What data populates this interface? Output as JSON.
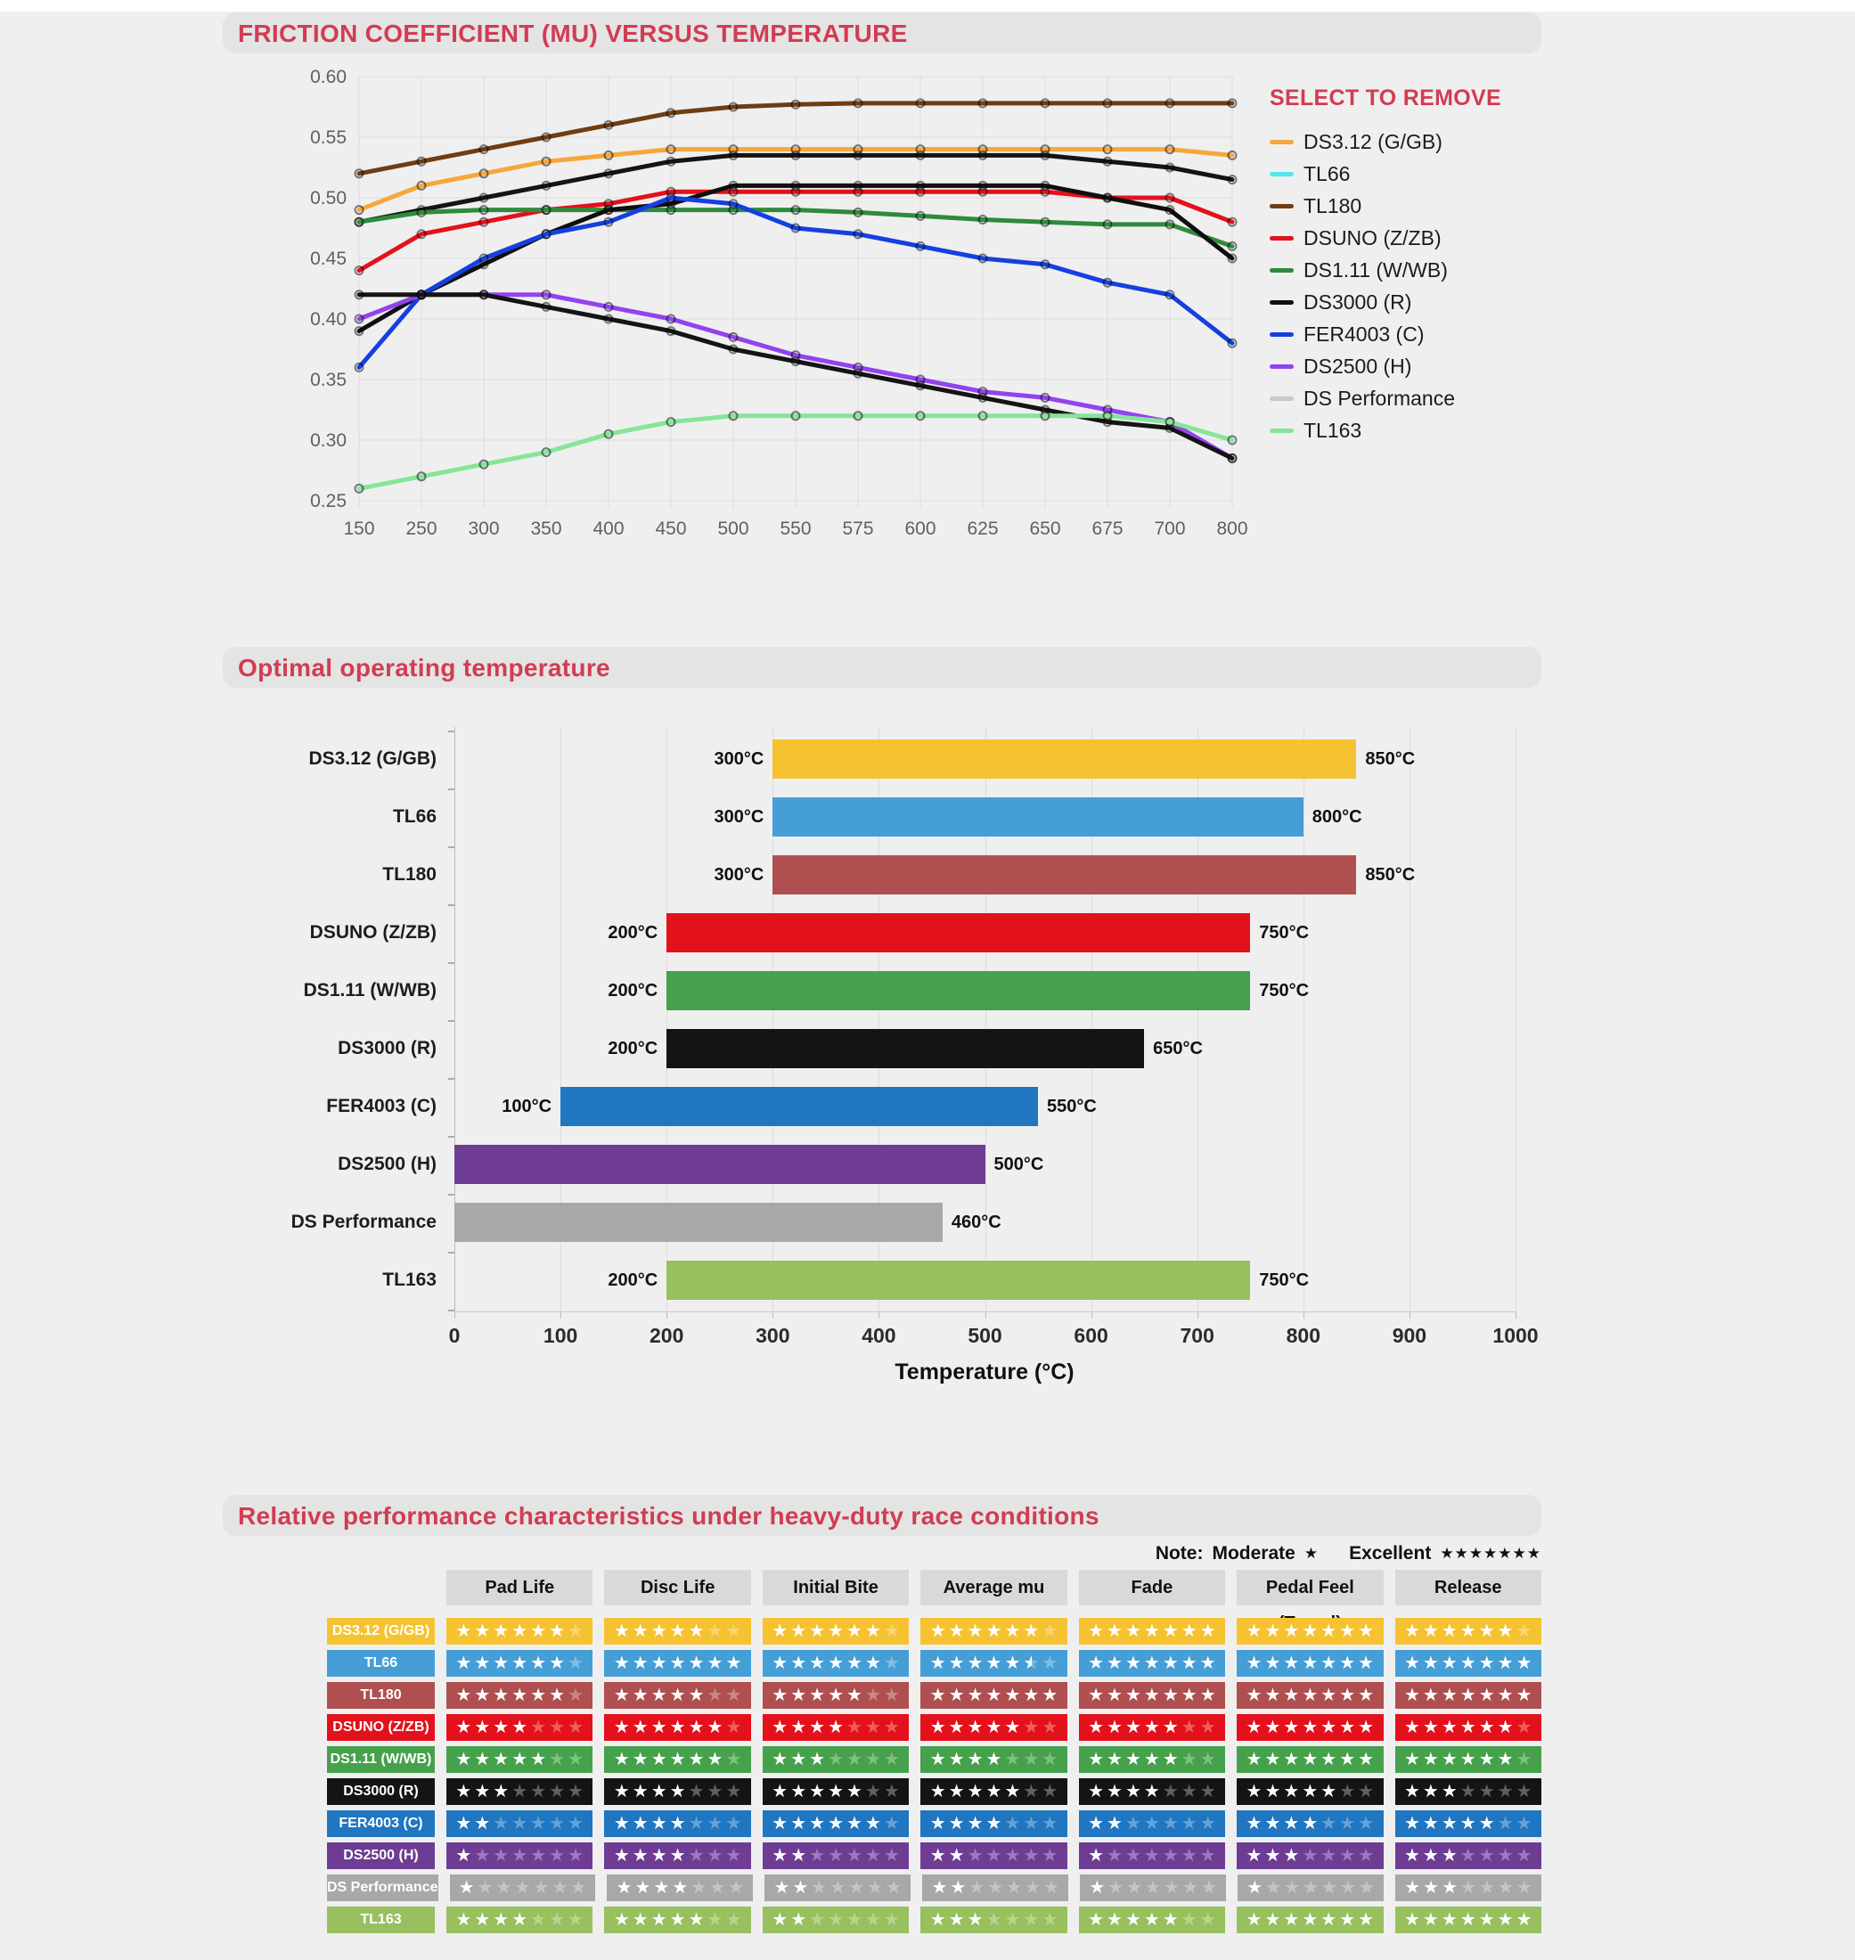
{
  "page": {
    "background": "#EFEFF0",
    "accent_red": "#D23C52"
  },
  "line_section": {
    "title": "FRICTION COEFFICIENT (MU) VERSUS TEMPERATURE",
    "legend_title": "SELECT TO REMOVE"
  },
  "bar_section": {
    "title": "Optimal operating temperature"
  },
  "table_section": {
    "title": "Relative performance characteristics under heavy-duty race conditions",
    "note_label": "Note:",
    "note_moderate_label": "Moderate",
    "note_moderate_stars": 1,
    "note_excellent_label": "Excellent",
    "note_excellent_stars": 7
  },
  "chart_data": [
    {
      "type": "line",
      "title": "FRICTION COEFFICIENT (MU) VERSUS TEMPERATURE",
      "x_categories": [
        150,
        250,
        300,
        350,
        400,
        450,
        500,
        550,
        575,
        600,
        625,
        650,
        675,
        700,
        800
      ],
      "ylim": [
        0.25,
        0.6
      ],
      "y_tick_step": 0.05,
      "grid": true,
      "legend_position": "right",
      "series": [
        {
          "name": "DS3.12 (G/GB)",
          "line_color": "#F5A73B",
          "legend_color": "#F5A73B",
          "values": [
            0.49,
            0.51,
            0.52,
            0.53,
            0.535,
            0.54,
            0.54,
            0.54,
            0.54,
            0.54,
            0.54,
            0.54,
            0.54,
            0.54,
            0.535
          ]
        },
        {
          "name": "TL66",
          "line_color": "#141414",
          "legend_color": "#53E8F0",
          "values": [
            0.48,
            0.49,
            0.5,
            0.51,
            0.52,
            0.53,
            0.535,
            0.535,
            0.535,
            0.535,
            0.535,
            0.535,
            0.53,
            0.525,
            0.515
          ]
        },
        {
          "name": "TL180",
          "line_color": "#6F3D13",
          "legend_color": "#6F3D13",
          "values": [
            0.52,
            0.53,
            0.54,
            0.55,
            0.56,
            0.57,
            0.575,
            0.577,
            0.578,
            0.578,
            0.578,
            0.578,
            0.578,
            0.578,
            0.578
          ]
        },
        {
          "name": "DSUNO (Z/ZB)",
          "line_color": "#E3111B",
          "legend_color": "#E3111B",
          "values": [
            0.44,
            0.47,
            0.48,
            0.49,
            0.495,
            0.505,
            0.505,
            0.505,
            0.505,
            0.505,
            0.505,
            0.505,
            0.5,
            0.5,
            0.48
          ]
        },
        {
          "name": "DS1.11 (W/WB)",
          "line_color": "#2F8B3B",
          "legend_color": "#2F8B3B",
          "values": [
            0.48,
            0.488,
            0.49,
            0.49,
            0.49,
            0.49,
            0.49,
            0.49,
            0.488,
            0.485,
            0.482,
            0.48,
            0.478,
            0.478,
            0.46
          ]
        },
        {
          "name": "DS3000 (R)",
          "line_color": "#0F0F0F",
          "legend_color": "#0F0F0F",
          "values": [
            0.39,
            0.42,
            0.445,
            0.47,
            0.49,
            0.495,
            0.51,
            0.51,
            0.51,
            0.51,
            0.51,
            0.51,
            0.5,
            0.49,
            0.45
          ]
        },
        {
          "name": "FER4003 (C)",
          "line_color": "#1440E0",
          "legend_color": "#1440E0",
          "values": [
            0.36,
            0.42,
            0.45,
            0.47,
            0.48,
            0.5,
            0.495,
            0.475,
            0.47,
            0.46,
            0.45,
            0.445,
            0.43,
            0.42,
            0.38
          ]
        },
        {
          "name": "DS2500 (H)",
          "line_color": "#9243EE",
          "legend_color": "#9243EE",
          "values": [
            0.4,
            0.42,
            0.42,
            0.42,
            0.41,
            0.4,
            0.385,
            0.37,
            0.36,
            0.35,
            0.34,
            0.335,
            0.325,
            0.315,
            0.285
          ]
        },
        {
          "name": "DS Performance",
          "line_color": "#141414",
          "legend_color": "#C9C9C9",
          "values": [
            0.42,
            0.42,
            0.42,
            0.41,
            0.4,
            0.39,
            0.375,
            0.365,
            0.355,
            0.345,
            0.335,
            0.325,
            0.315,
            0.31,
            0.285
          ]
        },
        {
          "name": "TL163",
          "line_color": "#86E598",
          "legend_color": "#86E598",
          "values": [
            0.26,
            0.27,
            0.28,
            0.29,
            0.305,
            0.315,
            0.32,
            0.32,
            0.32,
            0.32,
            0.32,
            0.32,
            0.32,
            0.315,
            0.3
          ]
        }
      ]
    },
    {
      "type": "bar",
      "title": "Optimal operating temperature",
      "orientation": "horizontal",
      "xlabel": "Temperature (°C)",
      "xlim": [
        0,
        1000
      ],
      "x_ticks": [
        0,
        100,
        200,
        300,
        400,
        500,
        600,
        700,
        800,
        900,
        1000
      ],
      "grid": true,
      "bars": [
        {
          "label": "DS3.12 (G/GB)",
          "start": 300,
          "end": 850,
          "start_label": "300°C",
          "end_label": "850°C",
          "color": "#F5C332"
        },
        {
          "label": "TL66",
          "start": 300,
          "end": 800,
          "start_label": "300°C",
          "end_label": "800°C",
          "color": "#459FD6"
        },
        {
          "label": "TL180",
          "start": 300,
          "end": 850,
          "start_label": "300°C",
          "end_label": "850°C",
          "color": "#B04F4F"
        },
        {
          "label": "DSUNO (Z/ZB)",
          "start": 200,
          "end": 750,
          "start_label": "200°C",
          "end_label": "750°C",
          "color": "#E3111B"
        },
        {
          "label": "DS1.11 (W/WB)",
          "start": 200,
          "end": 750,
          "start_label": "200°C",
          "end_label": "750°C",
          "color": "#46A14C"
        },
        {
          "label": "DS3000 (R)",
          "start": 200,
          "end": 650,
          "start_label": "200°C",
          "end_label": "650°C",
          "color": "#141414"
        },
        {
          "label": "FER4003 (C)",
          "start": 100,
          "end": 550,
          "start_label": "100°C",
          "end_label": "550°C",
          "color": "#2076C0"
        },
        {
          "label": "DS2500 (H)",
          "start": 0,
          "end": 500,
          "start_label": "",
          "end_label": "500°C",
          "color": "#6E3D93"
        },
        {
          "label": "DS Performance",
          "start": 0,
          "end": 460,
          "start_label": "",
          "end_label": "460°C",
          "color": "#A8A8A8"
        },
        {
          "label": "TL163",
          "start": 200,
          "end": 750,
          "start_label": "200°C",
          "end_label": "750°C",
          "color": "#98C05E"
        }
      ]
    },
    {
      "type": "table",
      "title": "Relative performance characteristics under heavy-duty race conditions",
      "max_stars": 7,
      "columns": [
        "Pad Life",
        "Disc Life",
        "Initial Bite",
        "Average mu",
        "Fade",
        "Pedal Feel (Travel)",
        "Release"
      ],
      "rows": [
        {
          "label": "DS3.12 (G/GB)",
          "color": "#F5C332",
          "ratings": [
            6,
            5,
            6,
            6,
            7,
            7,
            6
          ]
        },
        {
          "label": "TL66",
          "color": "#459FD6",
          "ratings": [
            6,
            7,
            6,
            5.5,
            7,
            7,
            7
          ]
        },
        {
          "label": "TL180",
          "color": "#B04F4F",
          "ratings": [
            6,
            5,
            5,
            7,
            7,
            7,
            7
          ]
        },
        {
          "label": "DSUNO (Z/ZB)",
          "color": "#E3111B",
          "ratings": [
            4,
            6,
            4,
            5,
            5,
            7,
            6
          ]
        },
        {
          "label": "DS1.11 (W/WB)",
          "color": "#46A14C",
          "ratings": [
            5,
            6,
            3,
            4,
            5,
            7,
            6
          ]
        },
        {
          "label": "DS3000 (R)",
          "color": "#141414",
          "ratings": [
            3,
            4,
            5,
            5,
            4,
            5,
            3
          ]
        },
        {
          "label": "FER4003 (C)",
          "color": "#2076C0",
          "ratings": [
            2,
            4,
            6,
            4,
            2,
            4,
            5
          ]
        },
        {
          "label": "DS2500 (H)",
          "color": "#6E3D93",
          "ratings": [
            1,
            4,
            2,
            2,
            1,
            3,
            3
          ]
        },
        {
          "label": "DS Performance",
          "color": "#A8A8A8",
          "ratings": [
            1,
            4,
            2,
            2,
            1,
            1,
            3
          ]
        },
        {
          "label": "TL163",
          "color": "#98C05E",
          "ratings": [
            4,
            5,
            2,
            3,
            5,
            7,
            7
          ]
        }
      ]
    }
  ]
}
